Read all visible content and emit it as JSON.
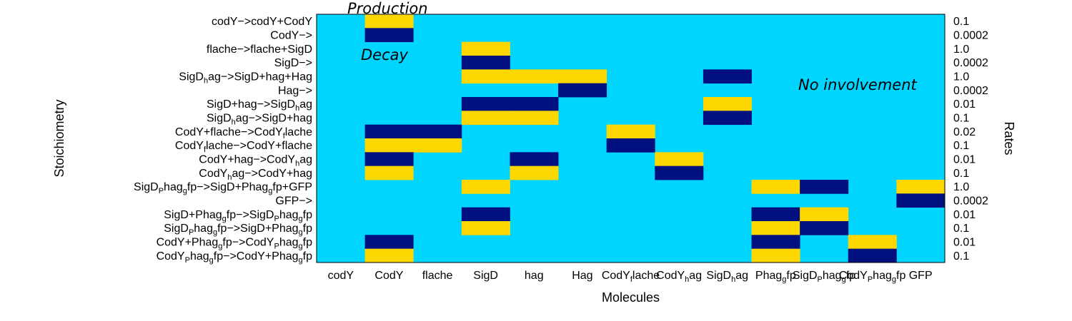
{
  "chart_data": {
    "type": "heatmap",
    "title": "",
    "xlabel": "Molecules",
    "ylabel": "Stoichiometry",
    "y2label": "Rates",
    "colors": {
      "none": "#00d5ff",
      "production": "#ffd700",
      "decay": "#00117f"
    },
    "columns": [
      {
        "segs": [
          [
            "codY",
            ""
          ]
        ]
      },
      {
        "segs": [
          [
            "CodY",
            ""
          ]
        ]
      },
      {
        "segs": [
          [
            "flache",
            ""
          ]
        ]
      },
      {
        "segs": [
          [
            "SigD",
            ""
          ]
        ]
      },
      {
        "segs": [
          [
            "hag",
            ""
          ]
        ]
      },
      {
        "segs": [
          [
            "Hag",
            ""
          ]
        ]
      },
      {
        "segs": [
          [
            "CodY",
            ""
          ],
          [
            "f",
            "sub"
          ],
          [
            "lache",
            ""
          ]
        ]
      },
      {
        "segs": [
          [
            "CodY",
            ""
          ],
          [
            "h",
            "sub"
          ],
          [
            "ag",
            ""
          ]
        ]
      },
      {
        "segs": [
          [
            "SigD",
            ""
          ],
          [
            "h",
            "sub"
          ],
          [
            "ag",
            ""
          ]
        ]
      },
      {
        "segs": [
          [
            "Phag",
            ""
          ],
          [
            "g",
            "sub"
          ],
          [
            "fp",
            ""
          ]
        ]
      },
      {
        "segs": [
          [
            "SigD",
            ""
          ],
          [
            "P",
            "sub"
          ],
          [
            "hag",
            ""
          ],
          [
            "g",
            "sub"
          ],
          [
            "fp",
            ""
          ]
        ]
      },
      {
        "segs": [
          [
            "CodY",
            ""
          ],
          [
            "P",
            "sub"
          ],
          [
            "hag",
            ""
          ],
          [
            "g",
            "sub"
          ],
          [
            "fp",
            ""
          ]
        ]
      },
      {
        "segs": [
          [
            "GFP",
            ""
          ]
        ]
      }
    ],
    "rows": [
      {
        "rate": "0.1",
        "segs": [
          [
            "codY−>codY+CodY",
            ""
          ]
        ],
        "cells": [
          0,
          1,
          0,
          0,
          0,
          0,
          0,
          0,
          0,
          0,
          0,
          0,
          0
        ]
      },
      {
        "rate": "0.0002",
        "segs": [
          [
            "CodY−>",
            ""
          ]
        ],
        "cells": [
          0,
          -1,
          0,
          0,
          0,
          0,
          0,
          0,
          0,
          0,
          0,
          0,
          0
        ]
      },
      {
        "rate": "1.0",
        "segs": [
          [
            "flache−>flache+SigD",
            ""
          ]
        ],
        "cells": [
          0,
          0,
          0,
          1,
          0,
          0,
          0,
          0,
          0,
          0,
          0,
          0,
          0
        ]
      },
      {
        "rate": "0.0002",
        "segs": [
          [
            "SigD−>",
            ""
          ]
        ],
        "cells": [
          0,
          0,
          0,
          -1,
          0,
          0,
          0,
          0,
          0,
          0,
          0,
          0,
          0
        ]
      },
      {
        "rate": "1.0",
        "segs": [
          [
            "SigD",
            ""
          ],
          [
            "h",
            "sub"
          ],
          [
            "ag−>SigD+hag+Hag",
            ""
          ]
        ],
        "cells": [
          0,
          0,
          0,
          1,
          1,
          1,
          0,
          0,
          -1,
          0,
          0,
          0,
          0
        ]
      },
      {
        "rate": "0.0002",
        "segs": [
          [
            "Hag−>",
            ""
          ]
        ],
        "cells": [
          0,
          0,
          0,
          0,
          0,
          -1,
          0,
          0,
          0,
          0,
          0,
          0,
          0
        ]
      },
      {
        "rate": "0.01",
        "segs": [
          [
            "SigD+hag−>SigD",
            ""
          ],
          [
            "h",
            "sub"
          ],
          [
            "ag",
            ""
          ]
        ],
        "cells": [
          0,
          0,
          0,
          -1,
          -1,
          0,
          0,
          0,
          1,
          0,
          0,
          0,
          0
        ]
      },
      {
        "rate": "0.1",
        "segs": [
          [
            "SigD",
            ""
          ],
          [
            "h",
            "sub"
          ],
          [
            "ag−>SigD+hag",
            ""
          ]
        ],
        "cells": [
          0,
          0,
          0,
          1,
          1,
          0,
          0,
          0,
          -1,
          0,
          0,
          0,
          0
        ]
      },
      {
        "rate": "0.02",
        "segs": [
          [
            "CodY+flache−>CodY",
            ""
          ],
          [
            "f",
            "sub"
          ],
          [
            "lache",
            ""
          ]
        ],
        "cells": [
          0,
          -1,
          -1,
          0,
          0,
          0,
          1,
          0,
          0,
          0,
          0,
          0,
          0
        ]
      },
      {
        "rate": "0.1",
        "segs": [
          [
            "CodY",
            ""
          ],
          [
            "f",
            "sub"
          ],
          [
            "lache−>CodY+flache",
            ""
          ]
        ],
        "cells": [
          0,
          1,
          1,
          0,
          0,
          0,
          -1,
          0,
          0,
          0,
          0,
          0,
          0
        ]
      },
      {
        "rate": "0.01",
        "segs": [
          [
            "CodY+hag−>CodY",
            ""
          ],
          [
            "h",
            "sub"
          ],
          [
            "ag",
            ""
          ]
        ],
        "cells": [
          0,
          -1,
          0,
          0,
          -1,
          0,
          0,
          1,
          0,
          0,
          0,
          0,
          0
        ]
      },
      {
        "rate": "0.1",
        "segs": [
          [
            "CodY",
            ""
          ],
          [
            "h",
            "sub"
          ],
          [
            "ag−>CodY+hag",
            ""
          ]
        ],
        "cells": [
          0,
          1,
          0,
          0,
          1,
          0,
          0,
          -1,
          0,
          0,
          0,
          0,
          0
        ]
      },
      {
        "rate": "1.0",
        "segs": [
          [
            "SigD",
            ""
          ],
          [
            "P",
            "sub"
          ],
          [
            "hag",
            ""
          ],
          [
            "g",
            "sub"
          ],
          [
            "fp−>SigD+Phag",
            ""
          ],
          [
            "g",
            "sub"
          ],
          [
            "fp+GFP",
            ""
          ]
        ],
        "cells": [
          0,
          0,
          0,
          1,
          0,
          0,
          0,
          0,
          0,
          1,
          -1,
          0,
          1
        ]
      },
      {
        "rate": "0.0002",
        "segs": [
          [
            "GFP−>",
            ""
          ]
        ],
        "cells": [
          0,
          0,
          0,
          0,
          0,
          0,
          0,
          0,
          0,
          0,
          0,
          0,
          -1
        ]
      },
      {
        "rate": "0.01",
        "segs": [
          [
            "SigD+Phag",
            ""
          ],
          [
            "g",
            "sub"
          ],
          [
            "fp−>SigD",
            ""
          ],
          [
            "P",
            "sub"
          ],
          [
            "hag",
            ""
          ],
          [
            "g",
            "sub"
          ],
          [
            "fp",
            ""
          ]
        ],
        "cells": [
          0,
          0,
          0,
          -1,
          0,
          0,
          0,
          0,
          0,
          -1,
          1,
          0,
          0
        ]
      },
      {
        "rate": "0.1",
        "segs": [
          [
            "SigD",
            ""
          ],
          [
            "P",
            "sub"
          ],
          [
            "hag",
            ""
          ],
          [
            "g",
            "sub"
          ],
          [
            "fp−>SigD+Phag",
            ""
          ],
          [
            "g",
            "sub"
          ],
          [
            "fp",
            ""
          ]
        ],
        "cells": [
          0,
          0,
          0,
          1,
          0,
          0,
          0,
          0,
          0,
          1,
          -1,
          0,
          0
        ]
      },
      {
        "rate": "0.01",
        "segs": [
          [
            "CodY+Phag",
            ""
          ],
          [
            "g",
            "sub"
          ],
          [
            "fp−>CodY",
            ""
          ],
          [
            "P",
            "sub"
          ],
          [
            "hag",
            ""
          ],
          [
            "g",
            "sub"
          ],
          [
            "fp",
            ""
          ]
        ],
        "cells": [
          0,
          -1,
          0,
          0,
          0,
          0,
          0,
          0,
          0,
          -1,
          0,
          1,
          0
        ]
      },
      {
        "rate": "0.1",
        "segs": [
          [
            "CodY",
            ""
          ],
          [
            "P",
            "sub"
          ],
          [
            "hag",
            ""
          ],
          [
            "g",
            "sub"
          ],
          [
            "fp−>CodY+Phag",
            ""
          ],
          [
            "g",
            "sub"
          ],
          [
            "fp",
            ""
          ]
        ],
        "cells": [
          0,
          1,
          0,
          0,
          0,
          0,
          0,
          0,
          0,
          1,
          0,
          -1,
          0
        ]
      }
    ],
    "annotations": {
      "production": "Production",
      "decay": "Decay",
      "none": "No involvement"
    }
  }
}
